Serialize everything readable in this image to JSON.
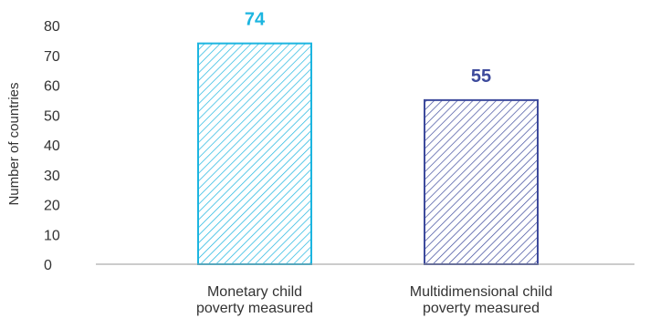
{
  "chart_data": {
    "type": "bar",
    "categories": [
      [
        "Monetary child",
        "poverty measured"
      ],
      [
        "Multidimensional child",
        "poverty measured"
      ]
    ],
    "values": [
      74,
      55
    ],
    "value_labels": [
      "74",
      "55"
    ],
    "colors": [
      "#1cb5e0",
      "#3d4a9c"
    ],
    "ylabel": "Number of countries",
    "ylim": [
      0,
      80
    ],
    "yticks": [
      0,
      10,
      20,
      30,
      40,
      50,
      60,
      70,
      80
    ],
    "bar_fill": "diagonal-hatch",
    "grid": false
  }
}
